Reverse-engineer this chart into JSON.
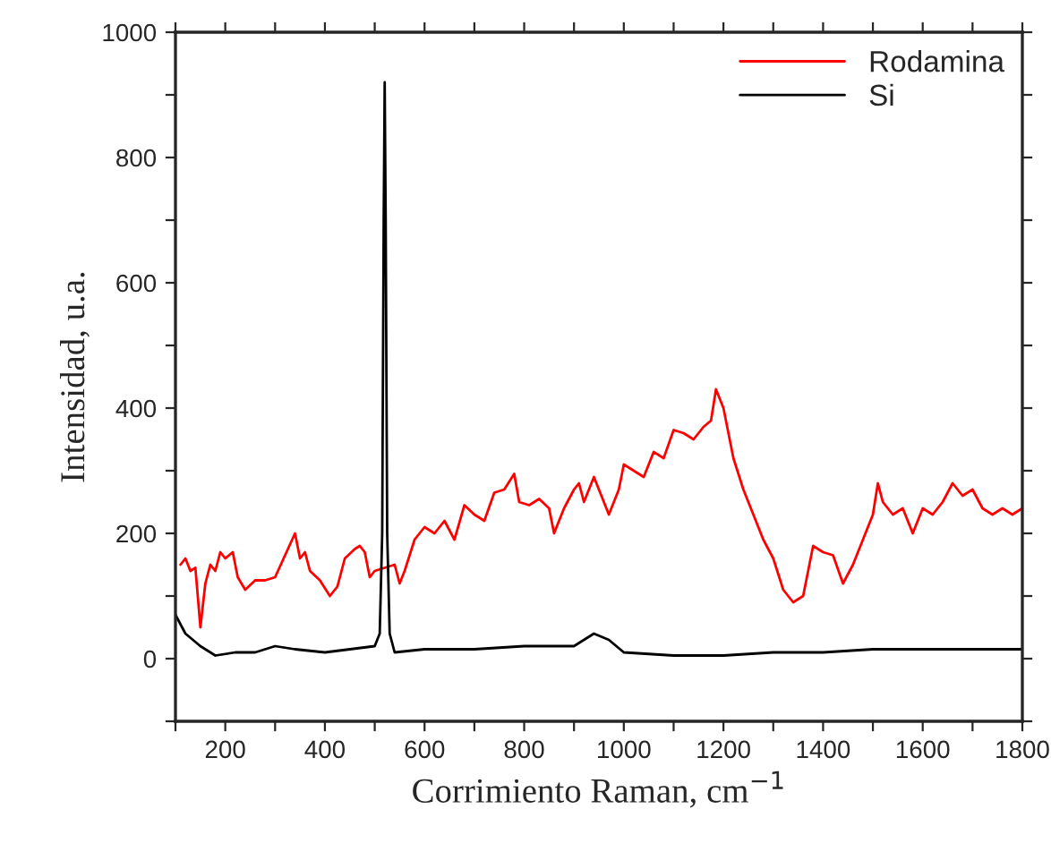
{
  "chart_data": {
    "type": "line",
    "xlabel": "Corrimiento Raman, cm$^{−1}$",
    "ylabel": "Intensidad, u.a.",
    "xlim": [
      100,
      1800
    ],
    "ylim": [
      -100,
      1000
    ],
    "xticks": [
      {
        "value": 100,
        "label": null
      },
      200,
      {
        "value": 300,
        "label": null
      },
      400,
      {
        "value": 500,
        "label": null
      },
      600,
      {
        "value": 700,
        "label": null
      },
      800,
      {
        "value": 900,
        "label": null
      },
      1000,
      {
        "value": 1100,
        "label": null
      },
      1200,
      {
        "value": 1300,
        "label": null
      },
      1400,
      {
        "value": 1500,
        "label": null
      },
      1600,
      {
        "value": 1700,
        "label": null
      },
      1800
    ],
    "yticks": [
      {
        "value": -100,
        "label": null
      },
      0,
      {
        "value": 100,
        "label": null
      },
      200,
      {
        "value": 300,
        "label": null
      },
      400,
      {
        "value": 500,
        "label": null
      },
      600,
      {
        "value": 700,
        "label": null
      },
      800,
      {
        "value": 900,
        "label": null
      },
      1000
    ],
    "legend": "top right",
    "grid": false,
    "series": [
      {
        "name": "Rodamina",
        "color": "#ff0000",
        "x": [
          110,
          120,
          130,
          140,
          150,
          160,
          170,
          180,
          190,
          200,
          215,
          225,
          240,
          260,
          280,
          300,
          320,
          340,
          350,
          360,
          370,
          390,
          410,
          425,
          440,
          460,
          470,
          480,
          490,
          500,
          520,
          540,
          550,
          560,
          580,
          600,
          620,
          640,
          660,
          680,
          700,
          720,
          740,
          760,
          780,
          790,
          810,
          830,
          850,
          860,
          880,
          900,
          910,
          920,
          940,
          955,
          970,
          990,
          1000,
          1020,
          1040,
          1060,
          1080,
          1100,
          1120,
          1140,
          1160,
          1175,
          1185,
          1200,
          1220,
          1240,
          1260,
          1280,
          1300,
          1320,
          1340,
          1360,
          1380,
          1400,
          1420,
          1440,
          1460,
          1480,
          1500,
          1510,
          1520,
          1540,
          1560,
          1580,
          1600,
          1620,
          1640,
          1660,
          1680,
          1700,
          1720,
          1740,
          1760,
          1780,
          1800
        ],
        "values": [
          150,
          160,
          140,
          145,
          50,
          120,
          150,
          140,
          170,
          160,
          170,
          130,
          110,
          125,
          125,
          130,
          165,
          200,
          160,
          170,
          140,
          125,
          100,
          115,
          160,
          175,
          180,
          170,
          130,
          140,
          145,
          150,
          120,
          140,
          190,
          210,
          200,
          220,
          190,
          245,
          230,
          220,
          265,
          270,
          295,
          250,
          245,
          255,
          240,
          200,
          240,
          270,
          280,
          250,
          290,
          260,
          230,
          270,
          310,
          300,
          290,
          330,
          320,
          365,
          360,
          350,
          370,
          380,
          430,
          400,
          320,
          270,
          230,
          190,
          160,
          110,
          90,
          100,
          180,
          170,
          165,
          120,
          150,
          190,
          230,
          280,
          250,
          230,
          240,
          200,
          240,
          230,
          250,
          280,
          260,
          270,
          240,
          230,
          240,
          230,
          240
        ]
      },
      {
        "name": "Si",
        "color": "#000000",
        "x": [
          100,
          120,
          150,
          180,
          220,
          260,
          300,
          340,
          400,
          450,
          500,
          510,
          515,
          518,
          520,
          522,
          525,
          530,
          540,
          600,
          700,
          800,
          900,
          940,
          970,
          1000,
          1100,
          1200,
          1300,
          1400,
          1500,
          1600,
          1700,
          1800
        ],
        "values": [
          70,
          40,
          20,
          5,
          10,
          10,
          20,
          15,
          10,
          15,
          20,
          40,
          200,
          700,
          920,
          700,
          200,
          40,
          10,
          15,
          15,
          20,
          20,
          40,
          30,
          10,
          5,
          5,
          10,
          10,
          15,
          15,
          15,
          15
        ]
      }
    ]
  }
}
